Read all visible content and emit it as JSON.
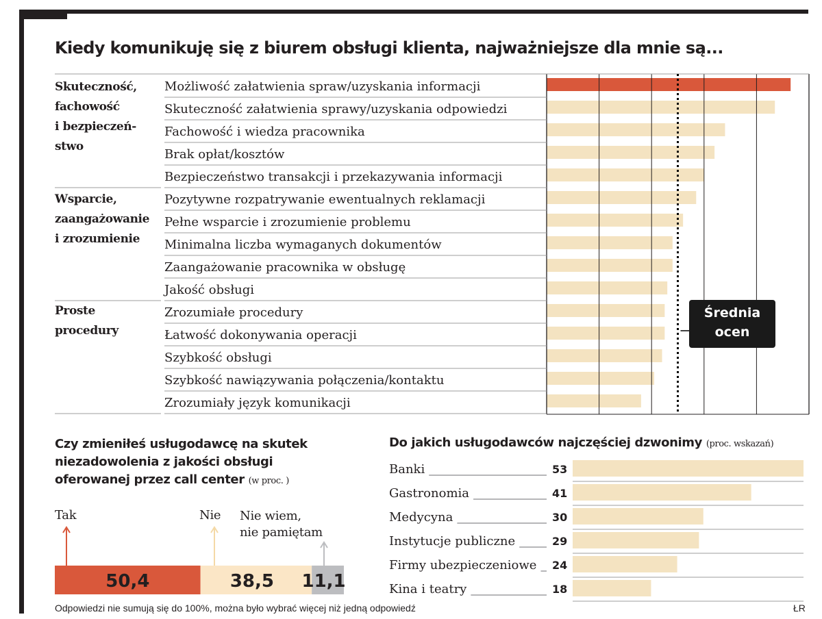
{
  "title": "Kiedy komunikuję się z biurem obsługi klienta, najważniejsze dla mnie są...",
  "groups": [
    {
      "label": "Skuteczność, fachowość i bezpieczeń-stwo",
      "lines": [
        "Skuteczność,",
        "fachowość",
        "i bezpieczeń-",
        "stwo"
      ]
    },
    {
      "label": "Wsparcie, zaangażowanie i zrozumienie",
      "lines": [
        "Wsparcie,",
        "zaangażowanie",
        "i zrozumienie"
      ]
    },
    {
      "label": "Proste procedury",
      "lines": [
        "Proste",
        "procedury"
      ]
    }
  ],
  "average_label": {
    "line1": "Średnia",
    "line2": "ocen"
  },
  "chart_data": [
    {
      "type": "bar",
      "orientation": "horizontal",
      "categories": [
        "Możliwość załatwienia spraw/uzyskania informacji",
        "Skuteczność załatwienia sprawy/uzyskania odpowiedzi",
        "Fachowość i wiedza pracownika",
        "Brak opłat/kosztów",
        "Bezpieczeństwo transakcji i przekazywania informacji",
        "Pozytywne rozpatrywanie ewentualnych reklamacji",
        "Pełne wsparcie i zrozumienie problemu",
        "Minimalna liczba wymaganych dokumentów",
        "Zaangażowanie pracownika w obsługę",
        "Jakość obsługi",
        "Zrozumiałe procedury",
        "Łatwość dokonywania operacji",
        "Szybkość obsługi",
        "Szybkość nawiązywania połączenia/kontaktu",
        "Zrozumiały język komunikacji"
      ],
      "values": [
        9.3,
        8.7,
        6.8,
        6.4,
        6.0,
        5.7,
        5.2,
        4.8,
        4.8,
        4.6,
        4.5,
        4.5,
        4.4,
        4.1,
        3.6
      ],
      "highlight_index": 0,
      "average": 5.0,
      "xlim": [
        0,
        10
      ],
      "xticks": [
        "0%",
        "2",
        "4",
        "6",
        "8",
        "10"
      ],
      "colors": {
        "highlight": "#d9583b",
        "bar": "#f4e3c1",
        "grid": "#231f20"
      }
    },
    {
      "type": "bar",
      "orientation": "stacked-horizontal",
      "title": "Czy zmieniłeś usługodawcę na skutek niezadowolenia z jakości obsługi oferowanej przez call center",
      "title_lines": [
        "Czy zmieniłeś usługodawcę na skutek",
        "niezadowolenia z jakości obsługi",
        "oferowanej przez call center"
      ],
      "unit": "(w proc. )",
      "categories": [
        "Tak",
        "Nie",
        "Nie wiem, nie pamiętam"
      ],
      "category_lines": [
        [
          "Tak"
        ],
        [
          "Nie"
        ],
        [
          "Nie wiem,",
          "nie pamiętam"
        ]
      ],
      "values": [
        50.4,
        38.5,
        11.1
      ],
      "value_labels": [
        "50,4",
        "38,5",
        "11,1"
      ],
      "colors": [
        "#d9583b",
        "#fbe6c6",
        "#bcbdc0"
      ]
    },
    {
      "type": "bar",
      "orientation": "horizontal",
      "title": "Do jakich usługodawców najczęściej dzwonimy",
      "unit": "(proc. wskazań)",
      "categories": [
        "Banki",
        "Gastronomia",
        "Medycyna",
        "Instytucje publiczne",
        "Firmy ubezpieczeniowe",
        "Kina i teatry"
      ],
      "values": [
        53,
        41,
        30,
        29,
        24,
        18
      ],
      "xlim": [
        0,
        53
      ],
      "colors": {
        "bar": "#f4e3c1"
      }
    }
  ],
  "footnote": "Odpowiedzi nie sumują się do 100%, można było wybrać więcej niż jedną odpowiedź",
  "credit": "ŁR"
}
